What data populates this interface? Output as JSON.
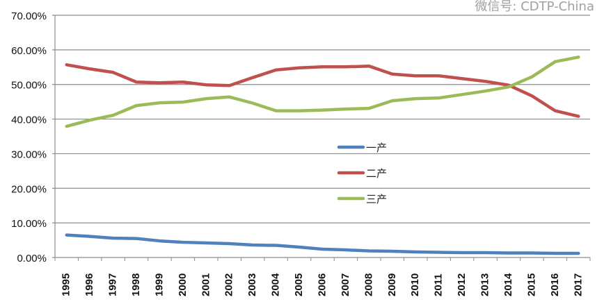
{
  "chart_data": {
    "type": "line",
    "title": "",
    "xlabel": "",
    "ylabel": "",
    "ylim": [
      0,
      70
    ],
    "yticks": [
      "0.00%",
      "10.00%",
      "20.00%",
      "30.00%",
      "40.00%",
      "50.00%",
      "60.00%",
      "70.00%"
    ],
    "grid": true,
    "legend_position": "center",
    "categories": [
      "1995",
      "1996",
      "1997",
      "1998",
      "1999",
      "2000",
      "2001",
      "2002",
      "2003",
      "2004",
      "2005",
      "2006",
      "2007",
      "2008",
      "2009",
      "2010",
      "2011",
      "2012",
      "2013",
      "2014",
      "2015",
      "2016",
      "2017"
    ],
    "series": [
      {
        "name": "一产",
        "color": "#4f81bd",
        "values": [
          6.5,
          6.1,
          5.6,
          5.5,
          4.8,
          4.4,
          4.2,
          4.0,
          3.6,
          3.5,
          3.0,
          2.4,
          2.2,
          1.9,
          1.8,
          1.6,
          1.5,
          1.4,
          1.4,
          1.3,
          1.3,
          1.2,
          1.2
        ]
      },
      {
        "name": "二产",
        "color": "#c0504d",
        "values": [
          55.7,
          54.5,
          53.5,
          50.7,
          50.5,
          50.7,
          49.9,
          49.7,
          52.0,
          54.2,
          54.8,
          55.1,
          55.1,
          55.3,
          53.0,
          52.5,
          52.5,
          51.7,
          50.9,
          49.8,
          46.7,
          42.4,
          40.8
        ]
      },
      {
        "name": "三产",
        "color": "#9bbb59",
        "values": [
          37.9,
          39.7,
          41.1,
          43.9,
          44.7,
          44.9,
          45.9,
          46.4,
          44.6,
          42.4,
          42.4,
          42.6,
          42.9,
          43.1,
          45.3,
          45.9,
          46.1,
          47.1,
          48.1,
          49.3,
          52.2,
          56.6,
          57.9
        ]
      }
    ]
  },
  "watermark": "微信号: CDTP-China"
}
